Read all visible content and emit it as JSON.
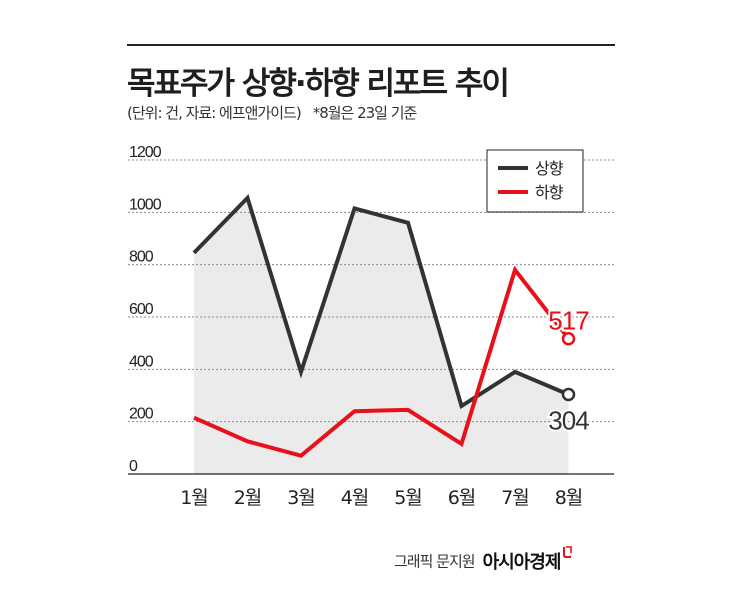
{
  "header": {
    "title": "목표주가 상향·하향 리포트 추이",
    "unit_note": "(단위: 건, 자료: 에프앤가이드)",
    "date_note": "*8월은 23일 기준"
  },
  "footer": {
    "credit": "그래픽 문지원",
    "brand": "아시아경제"
  },
  "colors": {
    "up": "#333333",
    "down": "#e8101c",
    "area": "#ebebeb",
    "grid": "#8a8a8a"
  },
  "chart_data": {
    "type": "line",
    "categories": [
      "1월",
      "2월",
      "3월",
      "4월",
      "5월",
      "6월",
      "7월",
      "8월"
    ],
    "series": [
      {
        "name": "상향",
        "values": [
          845,
          1055,
          390,
          1015,
          960,
          260,
          390,
          304
        ],
        "color": "#333333",
        "area": true
      },
      {
        "name": "하향",
        "values": [
          215,
          125,
          70,
          240,
          245,
          115,
          780,
          517
        ],
        "color": "#e8101c",
        "area": false
      }
    ],
    "yticks": [
      "0",
      "200",
      "400",
      "600",
      "800",
      "1000",
      "1200"
    ],
    "ylim": [
      0,
      1200
    ],
    "grid": true,
    "legend": "top-right",
    "last_labels": [
      "304",
      "517"
    ]
  }
}
